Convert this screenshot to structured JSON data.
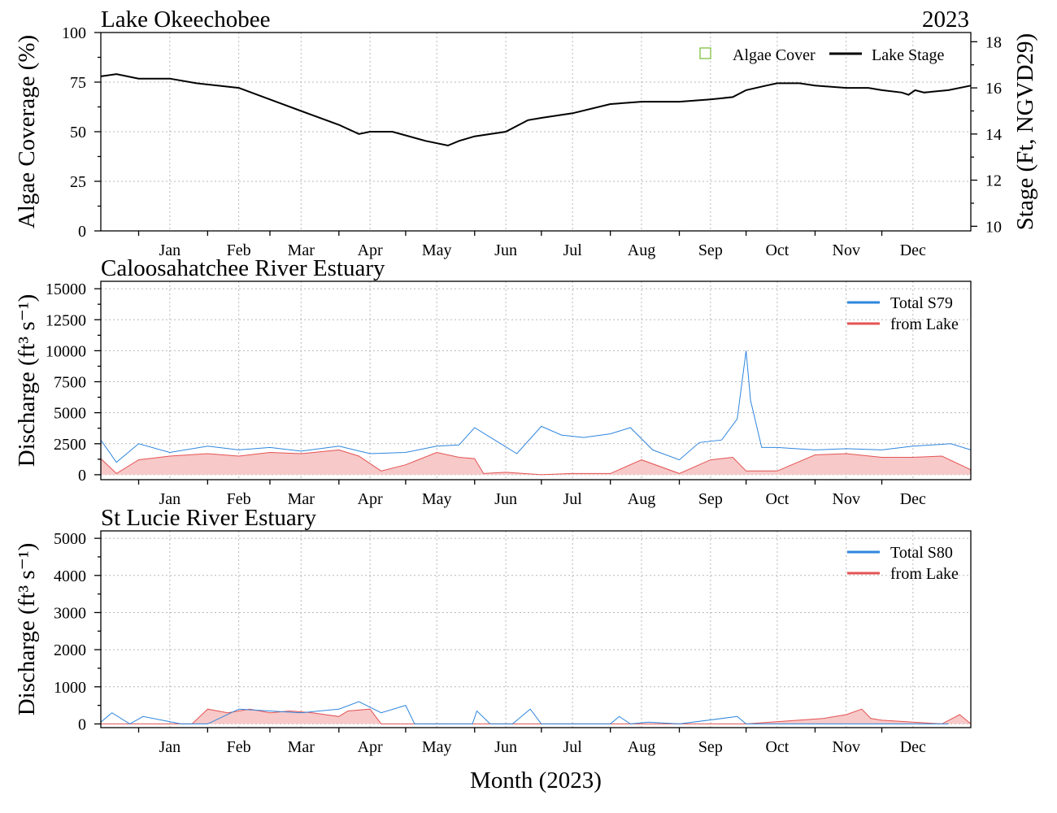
{
  "colors": {
    "stage": "#000000",
    "total": "#2e86de",
    "lake_line": "#e55353",
    "lake_fill": "#f7c9c9",
    "algae_box": "#7fbf3f",
    "grid": "#b8b8b8"
  },
  "x_axis": {
    "label": "Month (2023)",
    "months": [
      "Jan",
      "Feb",
      "Mar",
      "Apr",
      "May",
      "Jun",
      "Jul",
      "Aug",
      "Sep",
      "Oct",
      "Nov",
      "Dec"
    ]
  },
  "chart_data": [
    {
      "id": "lake",
      "type": "line",
      "title": "Lake Okeechobee",
      "year_label": "2023",
      "ylabel": "Algae Coverage (%)",
      "ylim": [
        0,
        100
      ],
      "yticks": [
        "0",
        "25",
        "50",
        "75",
        "100"
      ],
      "y2label": "Stage (Ft, NGVD29)",
      "y2lim": [
        9.8,
        18.4
      ],
      "y2ticks": [
        "10",
        "12",
        "14",
        "16",
        "18"
      ],
      "grid": true,
      "legend_position": "top-right",
      "legend": [
        "Algae Cover",
        "Lake Stage"
      ],
      "series": [
        {
          "name": "Lake Stage",
          "axis": "right",
          "x": [
            "2022-12-15",
            "2022-12-22",
            "2023-01-01",
            "2023-01-15",
            "2023-01-27",
            "2023-02-15",
            "2023-03-01",
            "2023-03-15",
            "2023-04-01",
            "2023-04-10",
            "2023-04-15",
            "2023-04-25",
            "2023-05-10",
            "2023-05-20",
            "2023-05-25",
            "2023-06-01",
            "2023-06-15",
            "2023-06-25",
            "2023-07-01",
            "2023-07-15",
            "2023-08-01",
            "2023-08-15",
            "2023-09-01",
            "2023-09-15",
            "2023-09-25",
            "2023-10-01",
            "2023-10-10",
            "2023-10-15",
            "2023-10-25",
            "2023-11-01",
            "2023-11-15",
            "2023-11-25",
            "2023-12-01",
            "2023-12-10",
            "2023-12-13",
            "2023-12-16",
            "2023-12-20",
            "2023-12-31",
            "2024-01-10"
          ],
          "y": [
            16.5,
            16.6,
            16.4,
            16.4,
            16.2,
            16.0,
            15.5,
            15.0,
            14.4,
            14.0,
            14.1,
            14.1,
            13.7,
            13.5,
            13.7,
            13.9,
            14.1,
            14.6,
            14.7,
            14.9,
            15.3,
            15.4,
            15.4,
            15.5,
            15.6,
            15.9,
            16.1,
            16.2,
            16.2,
            16.1,
            16.0,
            16.0,
            15.9,
            15.8,
            15.7,
            15.9,
            15.8,
            15.9,
            16.1
          ]
        }
      ]
    },
    {
      "id": "caloosahatchee",
      "type": "area",
      "title": "Caloosahatchee River Estuary",
      "ylabel": "Discharge (ft³ s⁻¹)",
      "ylim": [
        -400,
        15600
      ],
      "yticks": [
        "0",
        "2500",
        "5000",
        "7500",
        "10000",
        "12500",
        "15000"
      ],
      "grid": true,
      "legend_position": "top-right",
      "legend": [
        "Total S79",
        "from Lake"
      ],
      "series": [
        {
          "name": "Total S79",
          "x": [
            "2022-12-15",
            "2022-12-22",
            "2023-01-01",
            "2023-01-15",
            "2023-02-01",
            "2023-02-15",
            "2023-03-01",
            "2023-03-15",
            "2023-04-01",
            "2023-04-15",
            "2023-05-01",
            "2023-05-15",
            "2023-05-25",
            "2023-06-01",
            "2023-06-10",
            "2023-06-20",
            "2023-07-01",
            "2023-07-10",
            "2023-07-20",
            "2023-08-01",
            "2023-08-10",
            "2023-08-20",
            "2023-09-01",
            "2023-09-10",
            "2023-09-20",
            "2023-09-27",
            "2023-10-01",
            "2023-10-03",
            "2023-10-08",
            "2023-10-15",
            "2023-11-01",
            "2023-11-15",
            "2023-12-01",
            "2023-12-15",
            "2024-01-01",
            "2024-01-10"
          ],
          "y": [
            2800,
            1000,
            2500,
            1800,
            2300,
            2000,
            2200,
            1900,
            2300,
            1700,
            1800,
            2300,
            2400,
            3800,
            2800,
            1700,
            3900,
            3200,
            3000,
            3300,
            3800,
            2000,
            1200,
            2600,
            2800,
            4500,
            10000,
            6000,
            2200,
            2200,
            2000,
            2100,
            2000,
            2300,
            2500,
            2000
          ]
        },
        {
          "name": "from Lake",
          "x": [
            "2022-12-15",
            "2022-12-22",
            "2023-01-01",
            "2023-01-15",
            "2023-02-01",
            "2023-02-15",
            "2023-03-01",
            "2023-03-15",
            "2023-04-01",
            "2023-04-10",
            "2023-04-20",
            "2023-05-01",
            "2023-05-15",
            "2023-05-25",
            "2023-06-01",
            "2023-06-05",
            "2023-06-15",
            "2023-07-01",
            "2023-07-15",
            "2023-08-01",
            "2023-08-15",
            "2023-09-01",
            "2023-09-15",
            "2023-09-25",
            "2023-10-01",
            "2023-10-15",
            "2023-11-01",
            "2023-11-15",
            "2023-12-01",
            "2023-12-15",
            "2023-12-28",
            "2024-01-10"
          ],
          "y": [
            1300,
            100,
            1200,
            1500,
            1700,
            1500,
            1800,
            1700,
            2000,
            1500,
            300,
            800,
            1800,
            1400,
            1300,
            100,
            200,
            0,
            100,
            100,
            1200,
            100,
            1200,
            1400,
            300,
            300,
            1600,
            1700,
            1400,
            1400,
            1500,
            400
          ]
        }
      ]
    },
    {
      "id": "stlucie",
      "type": "area",
      "title": "St Lucie River Estuary",
      "ylabel": "Discharge (ft³ s⁻¹)",
      "ylim": [
        -100,
        5200
      ],
      "yticks": [
        "0",
        "1000",
        "2000",
        "3000",
        "4000",
        "5000"
      ],
      "grid": true,
      "legend_position": "top-right",
      "legend": [
        "Total S80",
        "from Lake"
      ],
      "series": [
        {
          "name": "Total S80",
          "x": [
            "2022-12-15",
            "2022-12-20",
            "2022-12-28",
            "2023-01-03",
            "2023-01-20",
            "2023-02-01",
            "2023-02-15",
            "2023-03-01",
            "2023-03-15",
            "2023-04-01",
            "2023-04-10",
            "2023-04-20",
            "2023-05-01",
            "2023-05-05",
            "2023-05-31",
            "2023-06-02",
            "2023-06-08",
            "2023-06-18",
            "2023-06-26",
            "2023-07-01",
            "2023-07-15",
            "2023-08-01",
            "2023-08-05",
            "2023-08-10",
            "2023-08-18",
            "2023-09-01",
            "2023-09-27",
            "2023-10-01",
            "2023-11-01",
            "2023-12-31"
          ],
          "y": [
            50,
            300,
            0,
            200,
            0,
            0,
            400,
            350,
            300,
            400,
            600,
            300,
            500,
            0,
            0,
            350,
            0,
            0,
            400,
            0,
            0,
            0,
            200,
            0,
            50,
            0,
            200,
            0,
            0,
            0
          ]
        },
        {
          "name": "from Lake",
          "x": [
            "2022-12-15",
            "2023-01-25",
            "2023-02-01",
            "2023-02-10",
            "2023-02-20",
            "2023-03-01",
            "2023-03-10",
            "2023-03-20",
            "2023-04-01",
            "2023-04-05",
            "2023-04-15",
            "2023-04-20",
            "2023-05-01",
            "2023-10-01",
            "2023-11-05",
            "2023-11-10",
            "2023-11-15",
            "2023-11-22",
            "2023-11-26",
            "2023-12-01",
            "2023-12-28",
            "2024-01-05",
            "2024-01-10"
          ],
          "y": [
            0,
            0,
            400,
            300,
            400,
            300,
            350,
            300,
            200,
            350,
            400,
            0,
            0,
            0,
            150,
            200,
            250,
            400,
            150,
            100,
            0,
            250,
            0
          ]
        }
      ]
    }
  ]
}
